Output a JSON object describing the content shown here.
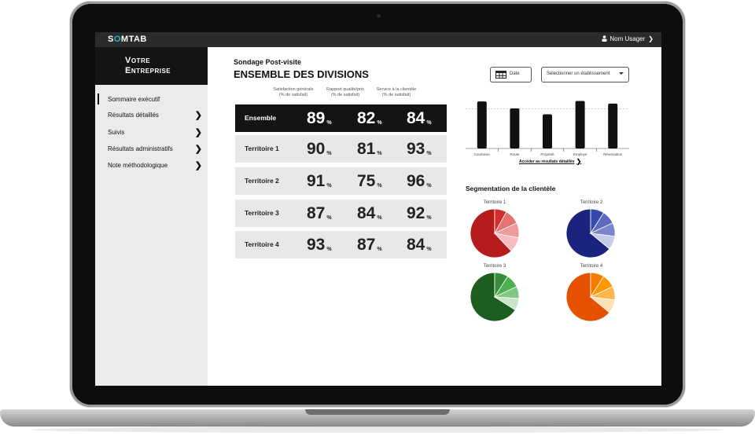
{
  "topbar": {
    "logo_pre": "S",
    "logo_o": "O",
    "logo_post": "MTAB",
    "user_label": "Nom Usager"
  },
  "company": {
    "line1": "Votre",
    "line2": "Entreprise"
  },
  "sidebar": {
    "items": [
      {
        "label": "Sommaire exécutif",
        "has_arrow": false
      },
      {
        "label": "Résultats détaillés",
        "has_arrow": true
      },
      {
        "label": "Suivis",
        "has_arrow": true
      },
      {
        "label": "Résultats administratifs",
        "has_arrow": true
      },
      {
        "label": "Note méthodologique",
        "has_arrow": true
      }
    ]
  },
  "header": {
    "subtitle": "Sondage Post-visite",
    "title": "ENSEMBLE DES DIVISIONS"
  },
  "controls": {
    "date_label": "Date",
    "select_label": "Sélectionner un établissement"
  },
  "table": {
    "columns": [
      {
        "line1": "Satisfaction générale",
        "line2": "(% de satisfait)"
      },
      {
        "line1": "Rapport qualité/prix",
        "line2": "(% de satisfait)"
      },
      {
        "line1": "Service à la clientèle",
        "line2": "(% de satisfait)"
      }
    ],
    "pct_symbol": "%",
    "rows": [
      {
        "label": "Ensemble",
        "values": [
          "89",
          "82",
          "84"
        ]
      },
      {
        "label": "Territoire 1",
        "values": [
          "90",
          "81",
          "93"
        ]
      },
      {
        "label": "Territoire 2",
        "values": [
          "91",
          "75",
          "96"
        ]
      },
      {
        "label": "Territoire 3",
        "values": [
          "87",
          "84",
          "92"
        ]
      },
      {
        "label": "Territoire 4",
        "values": [
          "93",
          "87",
          "84"
        ]
      }
    ]
  },
  "chart_data": [
    {
      "type": "bar",
      "categories": [
        "Courtoisie",
        "Route",
        "Propreté",
        "Employé",
        "Réservation"
      ],
      "values": [
        88,
        75,
        64,
        89,
        84
      ],
      "ylim": [
        0,
        100
      ],
      "reference_line": 74,
      "color": "#111111"
    },
    {
      "type": "pie",
      "title": "Territoire 1",
      "values": [
        62,
        8,
        10,
        10,
        10
      ],
      "colors": [
        "#b71c1c",
        "#d32f2f",
        "#e57373",
        "#ef9a9a",
        "#f8bbc0"
      ]
    },
    {
      "type": "pie",
      "title": "Territoire 2",
      "values": [
        64,
        9,
        9,
        9,
        9
      ],
      "colors": [
        "#1a237e",
        "#3949ab",
        "#5c6bc0",
        "#7986cb",
        "#c5cae9"
      ]
    },
    {
      "type": "pie",
      "title": "Territoire 3",
      "values": [
        66,
        9,
        9,
        8,
        8
      ],
      "colors": [
        "#1b5e20",
        "#388e3c",
        "#4caf50",
        "#81c784",
        "#c8e6c9"
      ]
    },
    {
      "type": "pie",
      "title": "Territoire 4",
      "values": [
        64,
        9,
        9,
        9,
        9
      ],
      "colors": [
        "#e65100",
        "#f57c00",
        "#ff9800",
        "#ffb74d",
        "#ffe0b2"
      ]
    }
  ],
  "detail_link": "Accéder au résultats détaillés",
  "segmentation_title": "Segmentation de la clientèle"
}
